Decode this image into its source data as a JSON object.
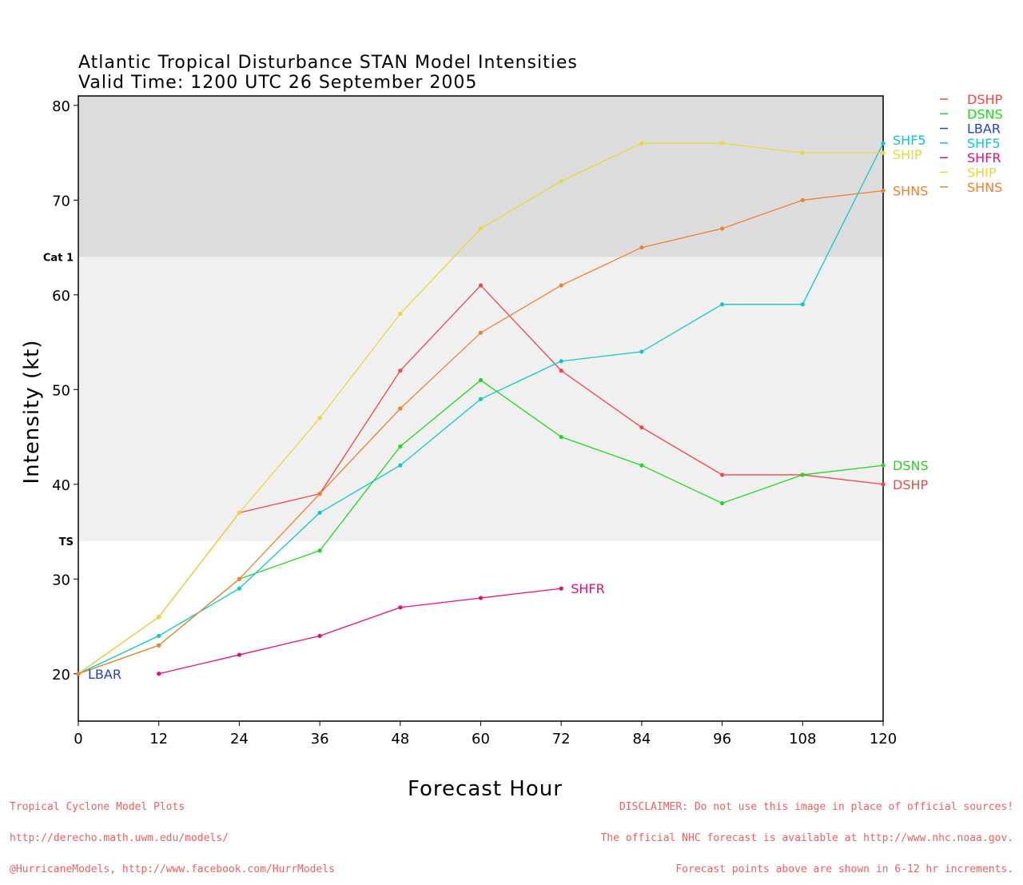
{
  "title_line1": "Atlantic Tropical Disturbance STAN Model Intensities",
  "title_line2": "Valid Time: 1200 UTC 26 September 2005",
  "footer_left": [
    "Tropical Cyclone Model Plots",
    "http://derecho.math.uwm.edu/models/",
    "@HurricaneModels, http://www.facebook.com/HurrModels"
  ],
  "footer_right": [
    "DISCLAIMER: Do not use this image in place of official sources!",
    "The official NHC forecast is available at http://www.nhc.noaa.gov.",
    "Forecast points above are shown in 6-12 hr increments."
  ],
  "chart_data": {
    "type": "line",
    "xlabel": "Forecast Hour",
    "ylabel": "Intensity (kt)",
    "xlim": [
      0,
      120
    ],
    "ylim": [
      15,
      81
    ],
    "xticks": [
      0,
      12,
      24,
      36,
      48,
      60,
      72,
      84,
      96,
      108,
      120
    ],
    "yticks": [
      20,
      30,
      40,
      50,
      60,
      70,
      80
    ],
    "thresholds": [
      {
        "label": "Cat 1",
        "value": 64,
        "color": "#dcdcdc"
      },
      {
        "label": "TS",
        "value": 34,
        "color": "#f0f0f0"
      }
    ],
    "legend_position": "top-right",
    "series": [
      {
        "name": "DSHP",
        "color": "#f04848",
        "x": [
          0,
          12,
          24,
          36,
          48,
          60,
          72,
          84,
          96,
          108,
          120
        ],
        "values": [
          20,
          26,
          37,
          39,
          52,
          61,
          52,
          46,
          41,
          41,
          40
        ]
      },
      {
        "name": "DSNS",
        "color": "#20d820",
        "x": [
          0,
          12,
          24,
          36,
          48,
          60,
          72,
          84,
          96,
          108,
          120
        ],
        "values": [
          20,
          23,
          30,
          33,
          44,
          51,
          45,
          42,
          38,
          41,
          42
        ]
      },
      {
        "name": "LBAR",
        "color": "#2040d8",
        "x": [
          0
        ],
        "values": [
          20
        ]
      },
      {
        "name": "SHF5",
        "color": "#10c8c8",
        "x": [
          0,
          12,
          24,
          36,
          48,
          60,
          72,
          84,
          96,
          108,
          120
        ],
        "values": [
          20,
          24,
          29,
          37,
          42,
          49,
          53,
          54,
          59,
          59,
          76
        ]
      },
      {
        "name": "SHFR",
        "color": "#e0107a",
        "x": [
          12,
          24,
          36,
          48,
          60,
          72
        ],
        "values": [
          20,
          22,
          24,
          27,
          28,
          29
        ]
      },
      {
        "name": "SHIP",
        "color": "#e8d83c",
        "x": [
          0,
          12,
          24,
          36,
          48,
          60,
          72,
          84,
          96,
          108,
          120
        ],
        "values": [
          20,
          26,
          37,
          47,
          58,
          67,
          72,
          76,
          76,
          75,
          75
        ]
      },
      {
        "name": "SHNS",
        "color": "#f08030",
        "x": [
          0,
          12,
          24,
          36,
          48,
          60,
          72,
          84,
          96,
          108,
          120
        ],
        "values": [
          20,
          23,
          30,
          39,
          48,
          56,
          61,
          65,
          67,
          70,
          71
        ]
      }
    ],
    "end_labels": [
      {
        "name": "SHF5",
        "series": "SHF5"
      },
      {
        "name": "SHIP",
        "series": "SHIP"
      },
      {
        "name": "SHNS",
        "series": "SHNS"
      },
      {
        "name": "DSNS",
        "series": "DSNS"
      },
      {
        "name": "DSHP",
        "series": "DSHP"
      },
      {
        "name": "SHFR",
        "series": "SHFR"
      },
      {
        "name": "LBAR",
        "series": "LBAR"
      }
    ]
  }
}
